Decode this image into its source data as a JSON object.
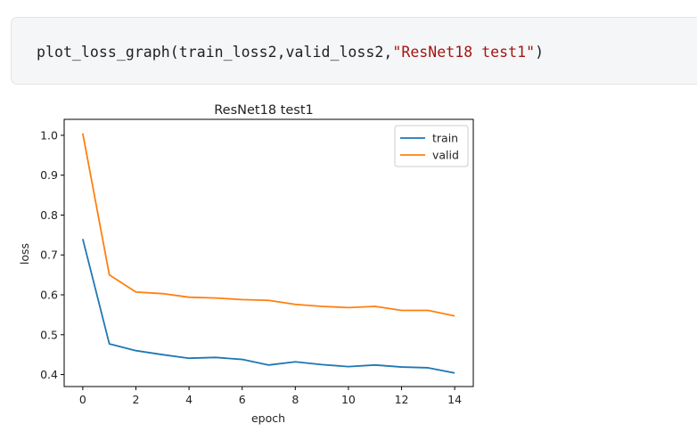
{
  "code_cell": {
    "code_prefix": "plot_loss_graph(train_loss2,valid_loss2,",
    "code_string": "\"ResNet18 test1\"",
    "code_suffix": ")"
  },
  "chart_data": {
    "type": "line",
    "title": "ResNet18 test1",
    "xlabel": "epoch",
    "ylabel": "loss",
    "xlim": [
      -0.7,
      14.7
    ],
    "ylim": [
      0.37,
      1.04
    ],
    "xticks": [
      0,
      2,
      4,
      6,
      8,
      10,
      12,
      14
    ],
    "xtick_labels": [
      "0",
      "2",
      "4",
      "6",
      "8",
      "10",
      "12",
      "14"
    ],
    "yticks": [
      0.4,
      0.5,
      0.6,
      0.7,
      0.8,
      0.9,
      1.0
    ],
    "ytick_labels": [
      "0.4",
      "0.5",
      "0.6",
      "0.7",
      "0.8",
      "0.9",
      "1.0"
    ],
    "grid": false,
    "legend_position": "upper right",
    "x": [
      0,
      1,
      2,
      3,
      4,
      5,
      6,
      7,
      8,
      9,
      10,
      11,
      12,
      13,
      14
    ],
    "series": [
      {
        "name": "train",
        "color": "#1f77b4",
        "values": [
          0.74,
          0.477,
          0.46,
          0.45,
          0.441,
          0.443,
          0.438,
          0.424,
          0.432,
          0.425,
          0.42,
          0.424,
          0.419,
          0.417,
          0.404
        ]
      },
      {
        "name": "valid",
        "color": "#ff7f0e",
        "values": [
          1.005,
          0.65,
          0.607,
          0.603,
          0.594,
          0.592,
          0.588,
          0.586,
          0.576,
          0.571,
          0.568,
          0.571,
          0.561,
          0.561,
          0.547
        ]
      }
    ]
  }
}
